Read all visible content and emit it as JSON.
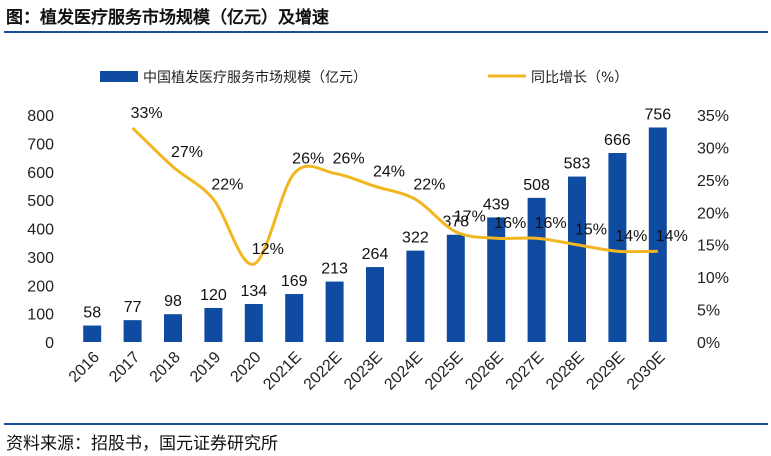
{
  "figure": {
    "title": "图：植发医疗服务市场规模（亿元）及增速",
    "source": "资料来源：招股书，国元证券研究所"
  },
  "colors": {
    "bar": "#0f4ba1",
    "line": "#f2b620",
    "rule": "#1f4e9a"
  },
  "chart_data": {
    "type": "bar",
    "categories": [
      "2016",
      "2017",
      "2018",
      "2019",
      "2020",
      "2021E",
      "2022E",
      "2023E",
      "2024E",
      "2025E",
      "2026E",
      "2027E",
      "2028E",
      "2029E",
      "2030E"
    ],
    "series": [
      {
        "name": "中国植发医疗服务市场规模（亿元）",
        "type": "bar",
        "axis": "left",
        "values": [
          58,
          77,
          98,
          120,
          134,
          169,
          213,
          264,
          322,
          378,
          439,
          508,
          583,
          666,
          756
        ]
      },
      {
        "name": "同比增长（%）",
        "type": "line",
        "axis": "right",
        "values": [
          null,
          33,
          27,
          22,
          12,
          26,
          26,
          24,
          22,
          17,
          16,
          16,
          15,
          14,
          14
        ]
      }
    ],
    "left_axis": {
      "min": 0,
      "max": 800,
      "ticks": [
        0,
        100,
        200,
        300,
        400,
        500,
        600,
        700,
        800
      ]
    },
    "right_axis": {
      "min": 0,
      "max": 35,
      "ticks": [
        "0%",
        "5%",
        "10%",
        "15%",
        "20%",
        "25%",
        "30%",
        "35%"
      ]
    },
    "legend_position": "top",
    "grid": false
  }
}
